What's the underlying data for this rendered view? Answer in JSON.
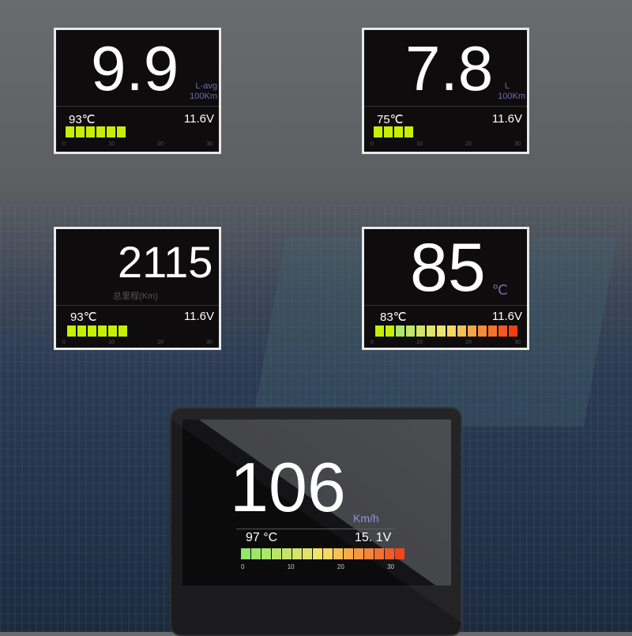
{
  "panels": [
    {
      "value": "9.9",
      "unit1": "L-avg",
      "unit2": "100Km",
      "temp": "93℃",
      "volt": "11.6V",
      "ticks": [
        "0",
        "10",
        "20",
        "30"
      ],
      "segments": 6
    },
    {
      "value": "7.8",
      "unit1": "L",
      "unit2": "100Km",
      "temp": "75℃",
      "volt": "11.6V",
      "ticks": [
        "0",
        "10",
        "20",
        "30"
      ],
      "segments": 4
    },
    {
      "value": "2115",
      "unit1": "总里程(Km)",
      "temp": "93℃",
      "volt": "11.6V",
      "ticks": [
        "0",
        "10",
        "20",
        "30"
      ],
      "segments": 6
    },
    {
      "value": "85",
      "unit1": "℃",
      "temp": "83℃",
      "volt": "11.6V",
      "ticks": [
        "0",
        "10",
        "20",
        "30"
      ],
      "segments": 14
    }
  ],
  "device": {
    "value": "106",
    "unit": "Km/h",
    "temp": "97 °C",
    "volt": "15. 1V",
    "ticks": [
      "0",
      "10",
      "20",
      "30"
    ],
    "segments": 16
  },
  "colors": {
    "bar_low": "#c6f000",
    "bar_green": "#8ee86a",
    "bar_yellow": "#f6e36a",
    "bar_red": "#f04010",
    "unit": "#6b6fae"
  }
}
